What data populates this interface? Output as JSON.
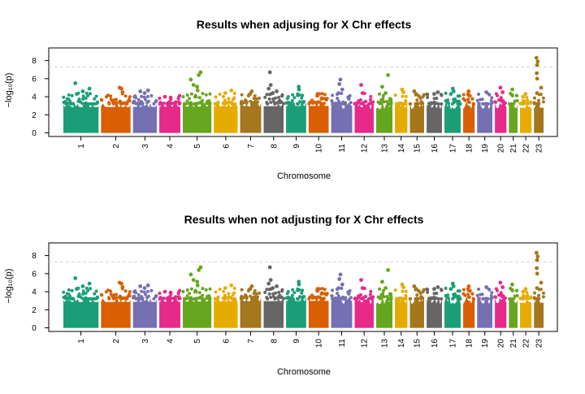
{
  "chart_data": [
    {
      "type": "scatter",
      "title": "Results when adjusing for X Chr effects",
      "xlabel": "Chromosome",
      "ylabel": "−log₁₀(p)",
      "yticks": [
        0,
        2,
        4,
        6,
        8
      ],
      "ylim": [
        -0.4,
        9.4
      ],
      "threshold": 7.3,
      "threshold_color": "#d3d3d3",
      "grid": false,
      "chromosomes": [
        {
          "label": "1",
          "max": 5.5,
          "color": "#1B9E77",
          "peaks": [
            5.5,
            4.9,
            4.6,
            4.3
          ]
        },
        {
          "label": "2",
          "max": 5.0,
          "color": "#D95F02",
          "peaks": [
            5.0,
            4.9,
            4.5
          ]
        },
        {
          "label": "3",
          "max": 4.7,
          "color": "#7570B3",
          "peaks": [
            4.7,
            4.6,
            4.4
          ]
        },
        {
          "label": "4",
          "max": 4.0,
          "color": "#E7298A",
          "peaks": [
            4.0,
            3.9
          ]
        },
        {
          "label": "5",
          "max": 6.7,
          "color": "#66A61E",
          "peaks": [
            6.7,
            6.4,
            5.9,
            5.3,
            5.1,
            4.7
          ]
        },
        {
          "label": "6",
          "max": 4.7,
          "color": "#E6AB02",
          "peaks": [
            4.7,
            4.4
          ]
        },
        {
          "label": "7",
          "max": 4.6,
          "color": "#A6761D",
          "peaks": [
            4.6,
            4.3
          ]
        },
        {
          "label": "8",
          "max": 6.7,
          "color": "#666666",
          "peaks": [
            6.7,
            5.3,
            4.9,
            4.6,
            4.4
          ]
        },
        {
          "label": "9",
          "max": 5.1,
          "color": "#1B9E77",
          "peaks": [
            5.1,
            4.8,
            4.2
          ]
        },
        {
          "label": "10",
          "max": 4.3,
          "color": "#D95F02",
          "peaks": [
            4.3,
            4.1
          ]
        },
        {
          "label": "11",
          "max": 5.9,
          "color": "#7570B3",
          "peaks": [
            5.9,
            5.4,
            4.8,
            4.4
          ]
        },
        {
          "label": "12",
          "max": 5.3,
          "color": "#E7298A",
          "peaks": [
            5.3,
            4.4
          ]
        },
        {
          "label": "13",
          "max": 6.4,
          "color": "#66A61E",
          "peaks": [
            6.4,
            5.1,
            4.4
          ]
        },
        {
          "label": "14",
          "max": 4.8,
          "color": "#E6AB02",
          "peaks": [
            4.8,
            4.5
          ]
        },
        {
          "label": "15",
          "max": 4.6,
          "color": "#A6761D",
          "peaks": [
            4.6,
            4.3
          ]
        },
        {
          "label": "16",
          "max": 4.5,
          "color": "#666666",
          "peaks": [
            4.5,
            4.3
          ]
        },
        {
          "label": "17",
          "max": 4.9,
          "color": "#1B9E77",
          "peaks": [
            4.9,
            4.6,
            4.3
          ]
        },
        {
          "label": "18",
          "max": 4.6,
          "color": "#D95F02",
          "peaks": [
            4.6,
            4.1
          ]
        },
        {
          "label": "19",
          "max": 4.5,
          "color": "#7570B3",
          "peaks": [
            4.5
          ]
        },
        {
          "label": "20",
          "max": 5.0,
          "color": "#E7298A",
          "peaks": [
            5.0,
            4.5
          ]
        },
        {
          "label": "21",
          "max": 4.8,
          "color": "#66A61E",
          "peaks": [
            4.8,
            4.2
          ]
        },
        {
          "label": "22",
          "max": 4.3,
          "color": "#E6AB02",
          "peaks": [
            4.3,
            4.0
          ]
        },
        {
          "label": "23",
          "max": 8.3,
          "color": "#A6761D",
          "peaks": [
            8.3,
            7.9,
            7.5,
            6.6,
            6.0,
            5.0,
            4.4
          ]
        }
      ]
    },
    {
      "type": "scatter",
      "title": "Results when not adjusting for X Chr effects",
      "xlabel": "Chromosome",
      "ylabel": "−log₁₀(p)",
      "yticks": [
        0,
        2,
        4,
        6,
        8
      ],
      "ylim": [
        -0.4,
        9.4
      ],
      "threshold": 7.3,
      "threshold_color": "#d3d3d3",
      "grid": false,
      "chromosomes": [
        {
          "label": "1",
          "max": 5.5,
          "color": "#1B9E77",
          "peaks": [
            5.5,
            4.9,
            4.6,
            4.3
          ]
        },
        {
          "label": "2",
          "max": 5.0,
          "color": "#D95F02",
          "peaks": [
            5.0,
            4.9,
            4.5
          ]
        },
        {
          "label": "3",
          "max": 4.7,
          "color": "#7570B3",
          "peaks": [
            4.7,
            4.6,
            4.4
          ]
        },
        {
          "label": "4",
          "max": 4.0,
          "color": "#E7298A",
          "peaks": [
            4.0,
            3.9
          ]
        },
        {
          "label": "5",
          "max": 6.7,
          "color": "#66A61E",
          "peaks": [
            6.7,
            6.4,
            5.9,
            5.3,
            5.1,
            4.7
          ]
        },
        {
          "label": "6",
          "max": 4.7,
          "color": "#E6AB02",
          "peaks": [
            4.7,
            4.4
          ]
        },
        {
          "label": "7",
          "max": 4.6,
          "color": "#A6761D",
          "peaks": [
            4.6,
            4.3
          ]
        },
        {
          "label": "8",
          "max": 6.7,
          "color": "#666666",
          "peaks": [
            6.7,
            5.3,
            4.9,
            4.6,
            4.4
          ]
        },
        {
          "label": "9",
          "max": 5.1,
          "color": "#1B9E77",
          "peaks": [
            5.1,
            4.8,
            4.2
          ]
        },
        {
          "label": "10",
          "max": 4.3,
          "color": "#D95F02",
          "peaks": [
            4.3,
            4.1
          ]
        },
        {
          "label": "11",
          "max": 5.9,
          "color": "#7570B3",
          "peaks": [
            5.9,
            5.4,
            4.8,
            4.4
          ]
        },
        {
          "label": "12",
          "max": 5.3,
          "color": "#E7298A",
          "peaks": [
            5.3,
            4.4
          ]
        },
        {
          "label": "13",
          "max": 6.4,
          "color": "#66A61E",
          "peaks": [
            6.4,
            5.1,
            4.4
          ]
        },
        {
          "label": "14",
          "max": 4.8,
          "color": "#E6AB02",
          "peaks": [
            4.8,
            4.5
          ]
        },
        {
          "label": "15",
          "max": 4.6,
          "color": "#A6761D",
          "peaks": [
            4.6,
            4.3
          ]
        },
        {
          "label": "16",
          "max": 4.5,
          "color": "#666666",
          "peaks": [
            4.5,
            4.3
          ]
        },
        {
          "label": "17",
          "max": 4.9,
          "color": "#1B9E77",
          "peaks": [
            4.9,
            4.6,
            4.3
          ]
        },
        {
          "label": "18",
          "max": 4.6,
          "color": "#D95F02",
          "peaks": [
            4.6,
            4.1
          ]
        },
        {
          "label": "19",
          "max": 4.5,
          "color": "#7570B3",
          "peaks": [
            4.5
          ]
        },
        {
          "label": "20",
          "max": 5.0,
          "color": "#E7298A",
          "peaks": [
            5.0,
            4.5
          ]
        },
        {
          "label": "21",
          "max": 4.8,
          "color": "#66A61E",
          "peaks": [
            4.8,
            4.2
          ]
        },
        {
          "label": "22",
          "max": 4.3,
          "color": "#E6AB02",
          "peaks": [
            4.3,
            4.0
          ]
        },
        {
          "label": "23",
          "max": 8.3,
          "color": "#A6761D",
          "peaks": [
            8.3,
            7.9,
            7.5,
            6.6,
            6.0,
            5.0,
            4.4
          ]
        }
      ]
    }
  ]
}
